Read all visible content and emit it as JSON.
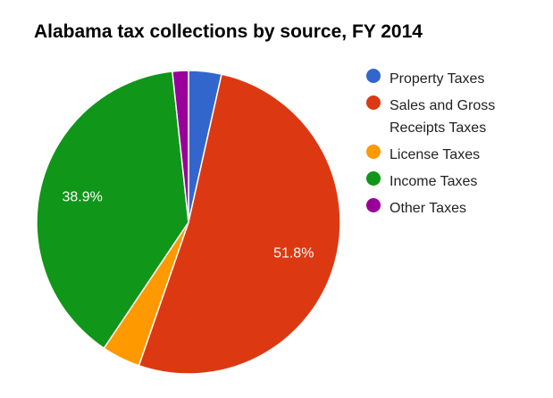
{
  "chart_data": {
    "type": "pie",
    "title": "Alabama tax collections by source, FY 2014",
    "slices": [
      {
        "label": "Property Taxes",
        "value": 3.5,
        "color": "#3366cc",
        "data_label": ""
      },
      {
        "label": "Sales and Gross Receipts Taxes",
        "value": 51.8,
        "color": "#dc3912",
        "data_label": "51.8%"
      },
      {
        "label": "License Taxes",
        "value": 4.1,
        "color": "#ff9900",
        "data_label": ""
      },
      {
        "label": "Income Taxes",
        "value": 38.9,
        "color": "#109618",
        "data_label": "38.9%"
      },
      {
        "label": "Other Taxes",
        "value": 1.7,
        "color": "#990099",
        "data_label": ""
      }
    ],
    "legend_position": "right"
  }
}
